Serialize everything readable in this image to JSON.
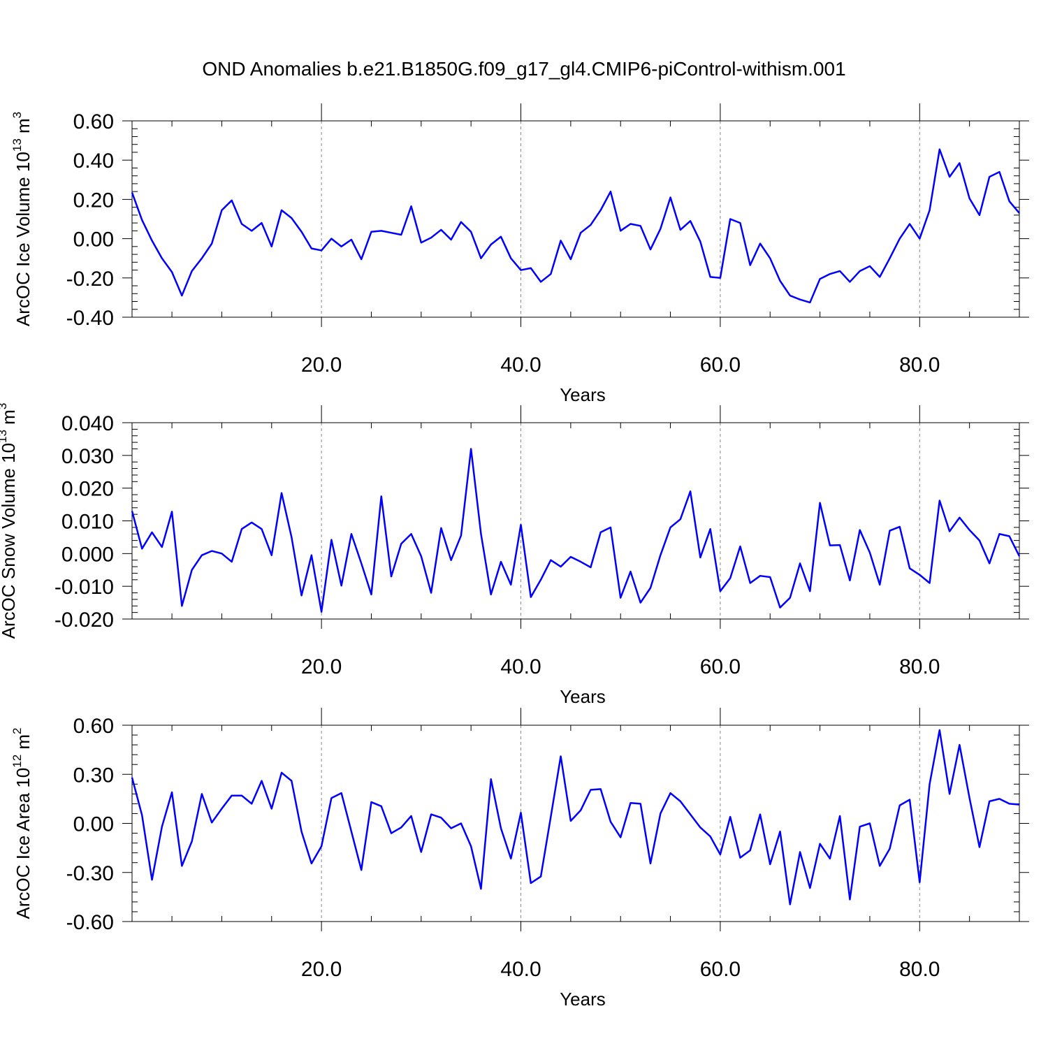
{
  "title": "OND Anomalies b.e21.B1850G.f09_g17_gl4.CMIP6-piControl-withism.001",
  "style": {
    "line_color": "#0000ff",
    "grid_color": "#888888",
    "axis_color": "#000000"
  },
  "chart_data": [
    {
      "type": "line",
      "xlabel": "Years",
      "ylabel_main": "ArcOC Ice Volume 10",
      "ylabel_exp": "13",
      "ylabel_unit": " m",
      "ylabel_unit_exp": "3",
      "xlim": [
        1,
        90
      ],
      "ylim": [
        -0.4,
        0.6
      ],
      "yticks": [
        -0.4,
        -0.2,
        0.0,
        0.2,
        0.4,
        0.6
      ],
      "ytick_labels": [
        "-0.40",
        "-0.20",
        "0.00",
        "0.20",
        "0.40",
        "0.60"
      ],
      "xticks": [
        20,
        40,
        60,
        80
      ],
      "xtick_labels": [
        "20.0",
        "40.0",
        "60.0",
        "80.0"
      ],
      "grid_x": true,
      "series": [
        {
          "x": [
            1,
            2,
            3,
            4,
            5,
            6,
            7,
            8,
            9,
            10,
            11,
            12,
            13,
            14,
            15,
            16,
            17,
            18,
            19,
            20,
            21,
            22,
            23,
            24,
            25,
            26,
            27,
            28,
            29,
            30,
            31,
            32,
            33,
            34,
            35,
            36,
            37,
            38,
            39,
            40,
            41,
            42,
            43,
            44,
            45,
            46,
            47,
            48,
            49,
            50,
            51,
            52,
            53,
            54,
            55,
            56,
            57,
            58,
            59,
            60,
            61,
            62,
            63,
            64,
            65,
            66,
            67,
            68,
            69,
            70,
            71,
            72,
            73,
            74,
            75,
            76,
            77,
            78,
            79,
            80,
            81,
            82,
            83,
            84,
            85,
            86,
            87,
            88,
            89,
            90
          ],
          "y": [
            0.235,
            0.095,
            -0.01,
            -0.1,
            -0.17,
            -0.29,
            -0.165,
            -0.1,
            -0.025,
            0.145,
            0.195,
            0.075,
            0.04,
            0.08,
            -0.04,
            0.145,
            0.105,
            0.035,
            -0.05,
            -0.06,
            0.0,
            -0.04,
            -0.005,
            -0.105,
            0.035,
            0.04,
            0.03,
            0.02,
            0.165,
            -0.02,
            0.005,
            0.045,
            -0.005,
            0.085,
            0.035,
            -0.1,
            -0.03,
            0.01,
            -0.1,
            -0.16,
            -0.15,
            -0.22,
            -0.18,
            -0.01,
            -0.105,
            0.03,
            0.07,
            0.145,
            0.24,
            0.04,
            0.075,
            0.065,
            -0.055,
            0.05,
            0.21,
            0.045,
            0.09,
            -0.015,
            -0.195,
            -0.2,
            0.1,
            0.08,
            -0.135,
            -0.025,
            -0.1,
            -0.215,
            -0.29,
            -0.31,
            -0.325,
            -0.205,
            -0.18,
            -0.165,
            -0.22,
            -0.165,
            -0.14,
            -0.195,
            -0.1,
            0.0,
            0.075,
            0.0,
            0.145,
            0.455,
            0.315,
            0.385,
            0.205,
            0.12,
            0.315,
            0.34,
            0.19,
            0.13
          ]
        }
      ]
    },
    {
      "type": "line",
      "xlabel": "Years",
      "ylabel_main": "ArcOC Snow Volume 10",
      "ylabel_exp": "13",
      "ylabel_unit": " m",
      "ylabel_unit_exp": "3",
      "xlim": [
        1,
        90
      ],
      "ylim": [
        -0.02,
        0.04
      ],
      "yticks": [
        -0.02,
        -0.01,
        0.0,
        0.01,
        0.02,
        0.03,
        0.04
      ],
      "ytick_labels": [
        "-0.020",
        "-0.010",
        "0.000",
        "0.010",
        "0.020",
        "0.030",
        "0.040"
      ],
      "xticks": [
        20,
        40,
        60,
        80
      ],
      "xtick_labels": [
        "20.0",
        "40.0",
        "60.0",
        "80.0"
      ],
      "grid_x": true,
      "series": [
        {
          "x": [
            1,
            2,
            3,
            4,
            5,
            6,
            7,
            8,
            9,
            10,
            11,
            12,
            13,
            14,
            15,
            16,
            17,
            18,
            19,
            20,
            21,
            22,
            23,
            24,
            25,
            26,
            27,
            28,
            29,
            30,
            31,
            32,
            33,
            34,
            35,
            36,
            37,
            38,
            39,
            40,
            41,
            42,
            43,
            44,
            45,
            46,
            47,
            48,
            49,
            50,
            51,
            52,
            53,
            54,
            55,
            56,
            57,
            58,
            59,
            60,
            61,
            62,
            63,
            64,
            65,
            66,
            67,
            68,
            69,
            70,
            71,
            72,
            73,
            74,
            75,
            76,
            77,
            78,
            79,
            80,
            81,
            82,
            83,
            84,
            85,
            86,
            87,
            88,
            89,
            90
          ],
          "y": [
            0.013,
            0.0015,
            0.0065,
            0.002,
            0.0128,
            -0.016,
            -0.005,
            -0.0005,
            0.0008,
            0.0,
            -0.0025,
            0.0075,
            0.0095,
            0.0075,
            -0.0005,
            0.0185,
            0.005,
            -0.0128,
            -0.0005,
            -0.0178,
            0.0042,
            -0.0098,
            0.006,
            -0.003,
            -0.0125,
            0.0175,
            -0.007,
            0.003,
            0.006,
            -0.0008,
            -0.012,
            0.0078,
            -0.002,
            0.0055,
            0.032,
            0.006,
            -0.0125,
            -0.0025,
            -0.0095,
            0.0088,
            -0.0133,
            -0.008,
            -0.002,
            -0.004,
            -0.001,
            -0.0025,
            -0.0042,
            0.0065,
            0.008,
            -0.0135,
            -0.0055,
            -0.015,
            -0.0105,
            -0.0005,
            0.008,
            0.0105,
            0.019,
            -0.0012,
            0.0075,
            -0.0115,
            -0.0075,
            0.0022,
            -0.009,
            -0.0068,
            -0.0072,
            -0.0165,
            -0.0135,
            -0.003,
            -0.0115,
            0.0155,
            0.0025,
            0.0026,
            -0.0082,
            0.0072,
            0.0003,
            -0.0095,
            0.007,
            0.0082,
            -0.0045,
            -0.0065,
            -0.009,
            0.0162,
            0.0068,
            0.011,
            0.0072,
            0.004,
            -0.003,
            0.006,
            0.0053,
            -0.0008
          ]
        }
      ]
    },
    {
      "type": "line",
      "xlabel": "Years",
      "ylabel_main": "ArcOC Ice Area 10",
      "ylabel_exp": "12",
      "ylabel_unit": " m",
      "ylabel_unit_exp": "2",
      "xlim": [
        1,
        90
      ],
      "ylim": [
        -0.6,
        0.6
      ],
      "yticks": [
        -0.6,
        -0.3,
        0.0,
        0.3,
        0.6
      ],
      "ytick_labels": [
        "-0.60",
        "-0.30",
        "0.00",
        "0.30",
        "0.60"
      ],
      "xticks": [
        20,
        40,
        60,
        80
      ],
      "xtick_labels": [
        "20.0",
        "40.0",
        "60.0",
        "80.0"
      ],
      "grid_x": true,
      "series": [
        {
          "x": [
            1,
            2,
            3,
            4,
            5,
            6,
            7,
            8,
            9,
            10,
            11,
            12,
            13,
            14,
            15,
            16,
            17,
            18,
            19,
            20,
            21,
            22,
            23,
            24,
            25,
            26,
            27,
            28,
            29,
            30,
            31,
            32,
            33,
            34,
            35,
            36,
            37,
            38,
            39,
            40,
            41,
            42,
            43,
            44,
            45,
            46,
            47,
            48,
            49,
            50,
            51,
            52,
            53,
            54,
            55,
            56,
            57,
            58,
            59,
            60,
            61,
            62,
            63,
            64,
            65,
            66,
            67,
            68,
            69,
            70,
            71,
            72,
            73,
            74,
            75,
            76,
            77,
            78,
            79,
            80,
            81,
            82,
            83,
            84,
            85,
            86,
            87,
            88,
            89,
            90
          ],
          "y": [
            0.28,
            0.05,
            -0.345,
            -0.02,
            0.19,
            -0.26,
            -0.11,
            0.18,
            0.005,
            0.09,
            0.17,
            0.17,
            0.12,
            0.26,
            0.09,
            0.31,
            0.26,
            -0.05,
            -0.245,
            -0.14,
            0.155,
            0.185,
            -0.05,
            -0.285,
            0.13,
            0.105,
            -0.06,
            -0.025,
            0.045,
            -0.175,
            0.055,
            0.035,
            -0.03,
            0.0,
            -0.14,
            -0.4,
            0.27,
            -0.03,
            -0.215,
            0.065,
            -0.365,
            -0.325,
            0.04,
            0.41,
            0.015,
            0.08,
            0.205,
            0.21,
            0.01,
            -0.085,
            0.125,
            0.12,
            -0.245,
            0.06,
            0.185,
            0.135,
            0.055,
            -0.025,
            -0.08,
            -0.19,
            0.04,
            -0.21,
            -0.165,
            0.055,
            -0.25,
            -0.05,
            -0.495,
            -0.175,
            -0.395,
            -0.125,
            -0.215,
            0.045,
            -0.465,
            -0.02,
            0.0,
            -0.26,
            -0.155,
            0.11,
            0.145,
            -0.36,
            0.24,
            0.57,
            0.18,
            0.48,
            0.155,
            -0.145,
            0.135,
            0.15,
            0.12,
            0.115
          ]
        }
      ]
    }
  ]
}
